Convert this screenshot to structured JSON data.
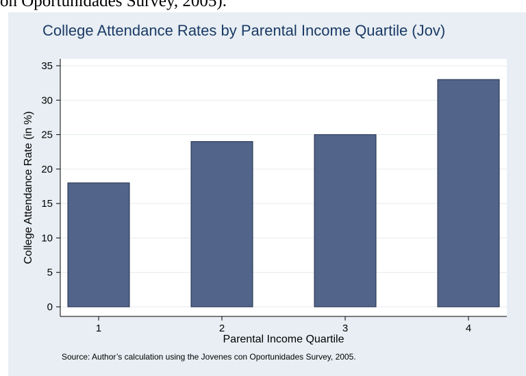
{
  "caption_fragment": "on Oportunidades Survey, 2005).",
  "chart_data": {
    "type": "bar",
    "title": "College Attendance Rates by Parental Income Quartile (Jov)",
    "xlabel": "Parental Income Quartile",
    "ylabel": "College Attendance Rate (in %)",
    "categories": [
      "1",
      "2",
      "3",
      "4"
    ],
    "values": [
      18,
      24,
      25,
      33
    ],
    "ylim": [
      0,
      35
    ],
    "yticks": [
      0,
      5,
      10,
      15,
      20,
      25,
      30,
      35
    ],
    "grid": true,
    "note": "Source: Author’s calculation using the Jovenes con Oportunidades Survey, 2005.",
    "colors": {
      "bar": "#52648a",
      "bar_edge": "#1e2d4a",
      "panel": "#e8eef3",
      "plot_bg": "#ffffff",
      "grid": "#e4eaef",
      "title": "#1a3a66"
    }
  }
}
